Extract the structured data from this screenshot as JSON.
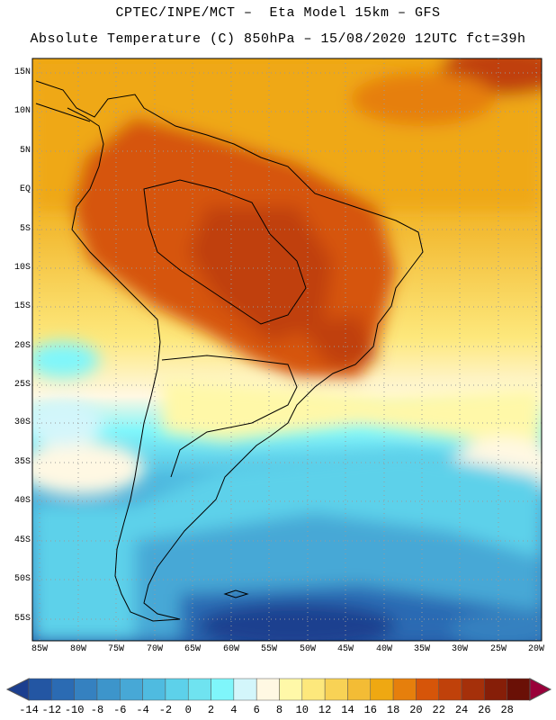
{
  "header": {
    "line1": "CPTEC/INPE/MCT –  Eta Model 15km – GFS",
    "line2": "Absolute Temperature (C) 850hPa – 15/08/2020 12UTC fct=39h"
  },
  "map": {
    "region": "South America",
    "variable": "Absolute Temperature (C) 850hPa",
    "lat_labels": [
      "15N",
      "10N",
      "5N",
      "EQ",
      "5S",
      "10S",
      "15S",
      "20S",
      "25S",
      "30S",
      "35S",
      "40S",
      "45S",
      "50S",
      "55S"
    ],
    "lon_labels": [
      "85W",
      "80W",
      "75W",
      "70W",
      "65W",
      "60W",
      "55W",
      "50W",
      "45W",
      "40W",
      "35W",
      "30W",
      "25W",
      "20W"
    ]
  },
  "colorbar": {
    "labels": [
      "-14",
      "-12",
      "-10",
      "-8",
      "-6",
      "-4",
      "-2",
      "0",
      "2",
      "4",
      "6",
      "8",
      "10",
      "12",
      "14",
      "16",
      "18",
      "20",
      "22",
      "24",
      "26",
      "28"
    ],
    "colors": [
      "#1c3f8f",
      "#2356a3",
      "#2b6bb3",
      "#3581c0",
      "#3d95cb",
      "#47a8d6",
      "#4fbbe0",
      "#5dd1ea",
      "#6fe3f0",
      "#7ff6fb",
      "#d3f6fb",
      "#fff8e3",
      "#fff8a8",
      "#fde87c",
      "#f8d255",
      "#f3bc35",
      "#efa812",
      "#e67f0c",
      "#d65509",
      "#c0410a",
      "#a5300a",
      "#861e08",
      "#6a1006",
      "#99003a"
    ]
  }
}
